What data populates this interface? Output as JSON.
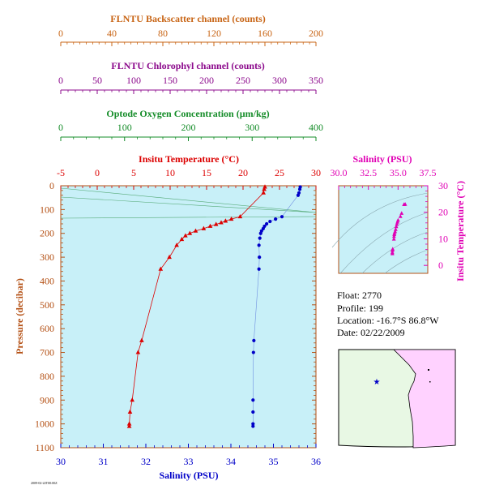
{
  "colors": {
    "backscatter": "#c86414",
    "chlorophyll": "#8c0a8c",
    "oxygen": "#148c28",
    "temperature": "#dc0000",
    "salinity": "#0000c8",
    "pressure": "#b45014",
    "salinity_inset": "#e000b4",
    "plot_bg": "#c8f0f8",
    "map_ocean": "#e8f8e4",
    "map_land": "#ffd2ff"
  },
  "axes": {
    "backscatter": {
      "label": "FLNTU Backscatter channel (counts)",
      "ticks": [
        "0",
        "40",
        "80",
        "120",
        "160",
        "200"
      ]
    },
    "chlorophyll": {
      "label": "FLNTU Chlorophyl channel (counts)",
      "ticks": [
        "0",
        "50",
        "100",
        "150",
        "200",
        "250",
        "300",
        "350"
      ]
    },
    "oxygen": {
      "label": "Optode Oxygen Concentration (µm/kg)",
      "ticks": [
        "0",
        "100",
        "200",
        "300",
        "400"
      ]
    },
    "temperature": {
      "label": "Insitu Temperature (°C)",
      "ticks": [
        "-5",
        "0",
        "5",
        "10",
        "15",
        "20",
        "25",
        "30"
      ]
    },
    "salinity": {
      "label": "Salinity (PSU)",
      "ticks": [
        "30",
        "31",
        "32",
        "33",
        "34",
        "35",
        "36"
      ]
    },
    "pressure": {
      "label": "Pressure (decibar)",
      "ticks": [
        "0",
        "100",
        "200",
        "300",
        "400",
        "500",
        "600",
        "700",
        "800",
        "900",
        "1000",
        "1100"
      ]
    },
    "inset_salinity": {
      "label": "Salinity (PSU)",
      "ticks": [
        "30.0",
        "32.5",
        "35.0",
        "37.5"
      ]
    },
    "inset_temperature": {
      "label": "Insitu Temperature (°C)",
      "ticks": [
        "0",
        "10",
        "20",
        "30"
      ]
    }
  },
  "info": {
    "float": "Float:  2770",
    "profile": "Profile:  199",
    "location": "Location:  -16.7°S  86.8°W",
    "date": "Date:  02/22/2009"
  },
  "footnote": "2009-02-22T00:00Z",
  "chart_data": [
    {
      "type": "line",
      "title": "",
      "xlabel": "Insitu Temperature (°C)",
      "ylabel": "Pressure (decibar)",
      "xlim": [
        -5,
        30
      ],
      "ylim": [
        1100,
        0
      ],
      "series": [
        {
          "name": "Insitu Temperature (°C)",
          "x": [
            23.0,
            22.9,
            22.8,
            19.6,
            18.4,
            17.6,
            17.0,
            16.3,
            15.5,
            14.6,
            13.5,
            12.7,
            12.1,
            11.6,
            10.9,
            9.9,
            8.7,
            6.1,
            5.6,
            4.8,
            4.5,
            4.4,
            4.4
          ],
          "y": [
            5,
            15,
            30,
            130,
            140,
            148,
            155,
            162,
            170,
            180,
            190,
            200,
            210,
            225,
            250,
            300,
            350,
            650,
            700,
            900,
            950,
            1000,
            1010
          ]
        }
      ]
    },
    {
      "type": "scatter",
      "title": "",
      "xlabel": "Salinity (PSU)",
      "ylabel": "Pressure (decibar)",
      "xlim": [
        30,
        36
      ],
      "ylim": [
        1100,
        0
      ],
      "series": [
        {
          "name": "Salinity (PSU)",
          "x": [
            35.63,
            35.62,
            35.6,
            35.58,
            35.2,
            35.05,
            34.92,
            34.84,
            34.79,
            34.76,
            34.72,
            34.7,
            34.68,
            34.66,
            34.67,
            34.66,
            34.54,
            34.53,
            34.52,
            34.52,
            34.52,
            34.52
          ],
          "y": [
            5,
            15,
            30,
            40,
            130,
            140,
            150,
            160,
            170,
            180,
            190,
            200,
            220,
            250,
            300,
            350,
            650,
            700,
            900,
            950,
            1000,
            1010
          ]
        }
      ]
    },
    {
      "type": "scatter",
      "title": "",
      "xlabel": "Salinity (PSU)",
      "ylabel": "Insitu Temperature (°C)",
      "xlim": [
        30,
        37.5
      ],
      "ylim": [
        -3,
        30
      ],
      "series": [
        {
          "name": "T-S",
          "x": [
            35.6,
            35.5,
            35.3,
            35.2,
            35.0,
            34.95,
            34.9,
            34.85,
            34.8,
            34.75,
            34.7,
            34.68,
            34.66,
            34.65,
            34.55,
            34.53,
            34.52,
            34.52
          ],
          "y": [
            23.0,
            22.9,
            19.6,
            18.4,
            17.0,
            16.3,
            15.5,
            14.6,
            13.5,
            12.7,
            12.1,
            11.6,
            10.9,
            9.9,
            6.1,
            5.6,
            4.8,
            4.4
          ]
        }
      ]
    }
  ]
}
